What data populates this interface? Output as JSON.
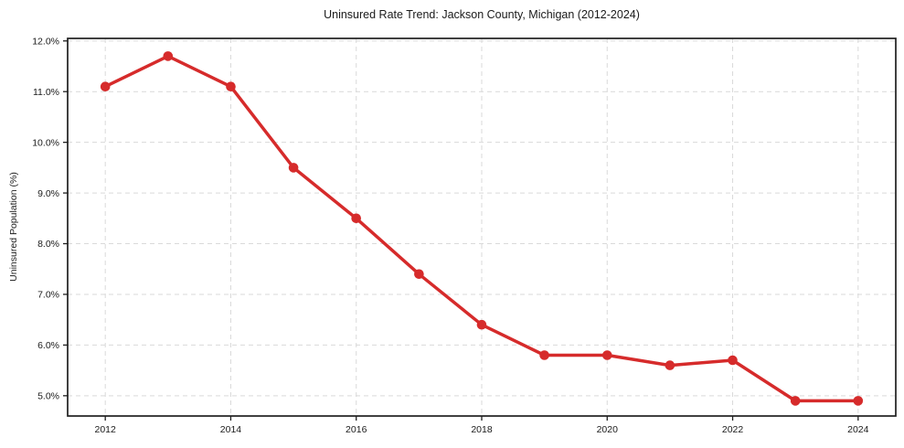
{
  "chart_data": {
    "type": "line",
    "title": "Uninsured Rate Trend: Jackson County, Michigan (2012-2024)",
    "xlabel": "",
    "ylabel": "Uninsured Population (%)",
    "x": [
      2012,
      2013,
      2014,
      2015,
      2016,
      2017,
      2018,
      2019,
      2020,
      2021,
      2022,
      2023,
      2024
    ],
    "values": [
      11.1,
      11.7,
      11.1,
      9.5,
      8.5,
      7.4,
      6.4,
      5.8,
      5.8,
      5.6,
      5.7,
      4.9,
      4.9
    ],
    "xlim": [
      2011.4,
      2024.6
    ],
    "ylim": [
      4.6,
      12.05
    ],
    "xticks": [
      2012,
      2014,
      2016,
      2018,
      2020,
      2022,
      2024
    ],
    "xtick_labels": [
      "2012",
      "2014",
      "2016",
      "2018",
      "2020",
      "2022",
      "2024"
    ],
    "yticks": [
      5.0,
      6.0,
      7.0,
      8.0,
      9.0,
      10.0,
      11.0,
      12.0
    ],
    "ytick_labels": [
      "5.0%",
      "6.0%",
      "7.0%",
      "8.0%",
      "9.0%",
      "10.0%",
      "11.0%",
      "12.0%"
    ],
    "grid": true,
    "grid_style": "dashed",
    "legend": false,
    "marker": "circle",
    "line_color": "#d62b2b",
    "marker_color": "#d62b2b",
    "grid_color": "#d9d9d9",
    "axis_color": "#1f1f1f",
    "text_color": "#1a1a1a",
    "background": "#ffffff"
  }
}
